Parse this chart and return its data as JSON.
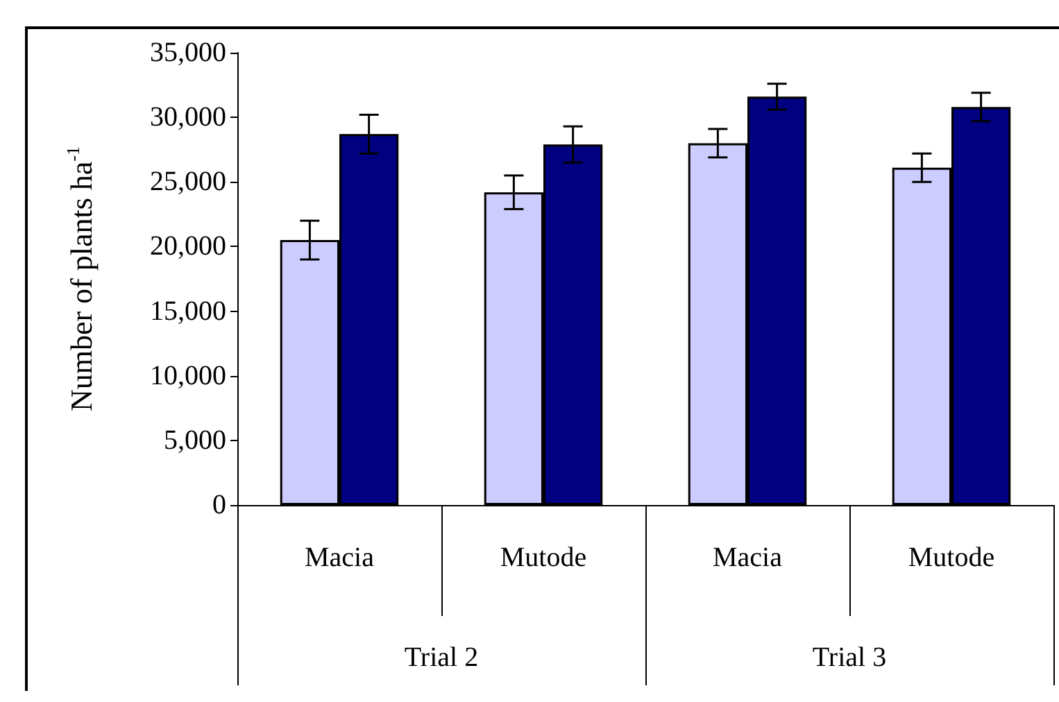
{
  "chart_data": {
    "type": "bar",
    "ylabel": "Number of plants ha$^{-1}$",
    "categories": [
      "Macia",
      "Mutode",
      "Macia",
      "Mutode"
    ],
    "annotations": [
      "Trial 2",
      "Trial 3"
    ],
    "series": [
      {
        "color": "#ccccff",
        "values": [
          20500,
          24200,
          28000,
          26100
        ],
        "errors": [
          1500,
          1300,
          1100,
          1100
        ]
      },
      {
        "color": "#000080",
        "values": [
          28700,
          27900,
          31600,
          30800
        ],
        "errors": [
          1500,
          1400,
          1000,
          1100
        ]
      }
    ],
    "ylim": [
      0,
      35000
    ],
    "yticks": [
      {
        "value": 0,
        "label": "0"
      },
      {
        "value": 5000,
        "label": "5,000"
      },
      {
        "value": 10000,
        "label": "10,000"
      },
      {
        "value": 15000,
        "label": "15,000"
      },
      {
        "value": 20000,
        "label": "20,000"
      },
      {
        "value": 25000,
        "label": "25,000"
      },
      {
        "value": 30000,
        "label": "30,000"
      },
      {
        "value": 35000,
        "label": "35,000"
      }
    ],
    "grid": false
  }
}
